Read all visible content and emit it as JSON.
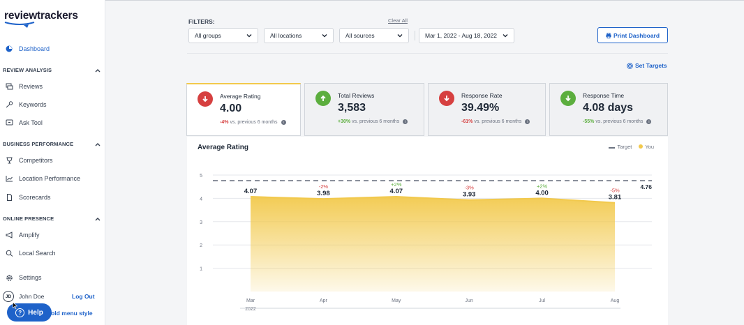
{
  "sidebar": {
    "logo": "reviewtrackers",
    "dashboard": "Dashboard",
    "sections": [
      {
        "title": "REVIEW ANALYSIS",
        "items": [
          "Reviews",
          "Keywords",
          "Ask Tool"
        ]
      },
      {
        "title": "BUSINESS PERFORMANCE",
        "items": [
          "Competitors",
          "Location Performance",
          "Scorecards"
        ]
      },
      {
        "title": "ONLINE PRESENCE",
        "items": [
          "Amplify",
          "Local Search"
        ]
      }
    ],
    "settings": "Settings",
    "user": {
      "initials": "JD",
      "name": "John Doe",
      "logout": "Log Out"
    },
    "old_menu": "e old menu style",
    "help": "Help"
  },
  "filters": {
    "label": "FILTERS:",
    "clear_all": "Clear All",
    "groups": "All groups",
    "locations": "All locations",
    "sources": "All sources",
    "date_range": "Mar 1, 2022 - Aug 18, 2022",
    "print": "Print Dashboard",
    "set_targets": "Set Targets"
  },
  "cards": [
    {
      "title": "Average Rating",
      "value": "4.00",
      "delta": "-4%",
      "suffix": "vs. previous 6 months",
      "direction": "down",
      "trend": "neg"
    },
    {
      "title": "Total Reviews",
      "value": "3,583",
      "delta": "+30%",
      "suffix": "vs. previous 6 months",
      "direction": "up",
      "trend": "pos"
    },
    {
      "title": "Response Rate",
      "value": "39.49%",
      "delta": "-61%",
      "suffix": "vs. previous 6 months",
      "direction": "down",
      "trend": "neg"
    },
    {
      "title": "Response Time",
      "value": "4.08 days",
      "delta": "-55%",
      "suffix": "vs. previous 6 months",
      "direction": "down",
      "trend": "pos"
    }
  ],
  "colors": {
    "accent": "#1e62c9",
    "negative": "#d64040",
    "positive": "#5cae3e",
    "chart_fill": "#f2c94c"
  },
  "chart_data": {
    "type": "area",
    "title": "Average Rating",
    "legend": [
      "Target",
      "You"
    ],
    "x": [
      "Mar",
      "Apr",
      "May",
      "Jun",
      "Jul",
      "Aug"
    ],
    "year_label": "2022",
    "series": [
      {
        "name": "You",
        "values": [
          4.07,
          3.98,
          4.07,
          3.93,
          4.0,
          3.81
        ],
        "labels": [
          "4.07",
          "3.98",
          "4.07",
          "3.93",
          "4.00",
          "3.81"
        ],
        "changes": [
          "",
          "-2%",
          "+2%",
          "-3%",
          "+2%",
          "-5%"
        ]
      },
      {
        "name": "Target",
        "values": [
          4.76,
          4.76,
          4.76,
          4.76,
          4.76,
          4.76
        ],
        "label": "4.76"
      }
    ],
    "yticks": [
      1,
      2,
      3,
      4,
      5
    ],
    "ylim": [
      0,
      5
    ],
    "grid": true,
    "legend_position": "top-right"
  }
}
